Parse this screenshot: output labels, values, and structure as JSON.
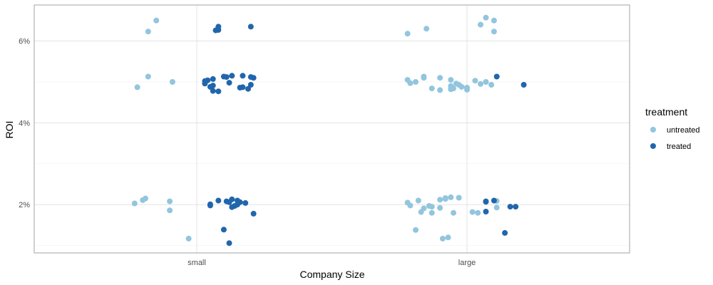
{
  "chart_data": {
    "type": "scatter",
    "subtype": "jitter",
    "x_axis_title": "Company Size",
    "y_axis_title": "ROI",
    "categories": [
      "small",
      "large"
    ],
    "y_ticks": [
      {
        "value": 2,
        "label": "2%"
      },
      {
        "value": 4,
        "label": "4%"
      },
      {
        "value": 6,
        "label": "6%"
      }
    ],
    "ylim": [
      0.82,
      6.88
    ],
    "grid": true,
    "legend": {
      "title": "treatment",
      "position": "right",
      "entries": [
        {
          "label": "untreated",
          "color": "#92C5DE"
        },
        {
          "label": "treated",
          "color": "#2166AC"
        }
      ]
    },
    "series": [
      {
        "name": "untreated",
        "color": "#92C5DE",
        "points": [
          {
            "x": "small",
            "offset": -0.18,
            "y": 6.23
          },
          {
            "x": "small",
            "offset": -0.15,
            "y": 6.5
          },
          {
            "x": "small",
            "offset": -0.18,
            "y": 5.13
          },
          {
            "x": "small",
            "offset": -0.09,
            "y": 5.0
          },
          {
            "x": "small",
            "offset": -0.22,
            "y": 4.87
          },
          {
            "x": "small",
            "offset": -0.23,
            "y": 2.03
          },
          {
            "x": "small",
            "offset": -0.2,
            "y": 2.11
          },
          {
            "x": "small",
            "offset": -0.19,
            "y": 2.15
          },
          {
            "x": "small",
            "offset": -0.1,
            "y": 2.08
          },
          {
            "x": "small",
            "offset": -0.1,
            "y": 1.86
          },
          {
            "x": "small",
            "offset": -0.03,
            "y": 1.17
          },
          {
            "x": "large",
            "offset": 0.07,
            "y": 6.57
          },
          {
            "x": "large",
            "offset": 0.1,
            "y": 6.5
          },
          {
            "x": "large",
            "offset": 0.05,
            "y": 6.4
          },
          {
            "x": "large",
            "offset": -0.15,
            "y": 6.3
          },
          {
            "x": "large",
            "offset": 0.1,
            "y": 6.23
          },
          {
            "x": "large",
            "offset": -0.22,
            "y": 6.18
          },
          {
            "x": "large",
            "offset": -0.16,
            "y": 5.13
          },
          {
            "x": "large",
            "offset": -0.16,
            "y": 5.1
          },
          {
            "x": "large",
            "offset": -0.1,
            "y": 5.1
          },
          {
            "x": "large",
            "offset": -0.22,
            "y": 5.05
          },
          {
            "x": "large",
            "offset": -0.06,
            "y": 5.05
          },
          {
            "x": "large",
            "offset": 0.03,
            "y": 5.03
          },
          {
            "x": "large",
            "offset": -0.19,
            "y": 5.0
          },
          {
            "x": "large",
            "offset": 0.07,
            "y": 5.0
          },
          {
            "x": "large",
            "offset": -0.21,
            "y": 4.97
          },
          {
            "x": "large",
            "offset": -0.04,
            "y": 4.96
          },
          {
            "x": "large",
            "offset": -0.03,
            "y": 4.93
          },
          {
            "x": "large",
            "offset": 0.05,
            "y": 4.95
          },
          {
            "x": "large",
            "offset": 0.09,
            "y": 4.93
          },
          {
            "x": "large",
            "offset": -0.06,
            "y": 4.9
          },
          {
            "x": "large",
            "offset": -0.02,
            "y": 4.88
          },
          {
            "x": "large",
            "offset": 0.0,
            "y": 4.86
          },
          {
            "x": "large",
            "offset": -0.13,
            "y": 4.84
          },
          {
            "x": "large",
            "offset": -0.05,
            "y": 4.84
          },
          {
            "x": "large",
            "offset": -0.06,
            "y": 4.82
          },
          {
            "x": "large",
            "offset": 0.0,
            "y": 4.81
          },
          {
            "x": "large",
            "offset": -0.1,
            "y": 4.8
          },
          {
            "x": "large",
            "offset": -0.06,
            "y": 2.18
          },
          {
            "x": "large",
            "offset": -0.08,
            "y": 2.16
          },
          {
            "x": "large",
            "offset": -0.08,
            "y": 2.14
          },
          {
            "x": "large",
            "offset": -0.1,
            "y": 2.12
          },
          {
            "x": "large",
            "offset": -0.03,
            "y": 2.17
          },
          {
            "x": "large",
            "offset": -0.18,
            "y": 2.1
          },
          {
            "x": "large",
            "offset": 0.11,
            "y": 2.09
          },
          {
            "x": "large",
            "offset": -0.22,
            "y": 2.05
          },
          {
            "x": "large",
            "offset": -0.21,
            "y": 1.98
          },
          {
            "x": "large",
            "offset": -0.14,
            "y": 1.97
          },
          {
            "x": "large",
            "offset": -0.13,
            "y": 1.95
          },
          {
            "x": "large",
            "offset": -0.16,
            "y": 1.91
          },
          {
            "x": "large",
            "offset": -0.1,
            "y": 1.92
          },
          {
            "x": "large",
            "offset": 0.11,
            "y": 1.93
          },
          {
            "x": "large",
            "offset": -0.17,
            "y": 1.82
          },
          {
            "x": "large",
            "offset": -0.13,
            "y": 1.8
          },
          {
            "x": "large",
            "offset": -0.05,
            "y": 1.8
          },
          {
            "x": "large",
            "offset": 0.02,
            "y": 1.82
          },
          {
            "x": "large",
            "offset": 0.04,
            "y": 1.8
          },
          {
            "x": "large",
            "offset": -0.19,
            "y": 1.38
          },
          {
            "x": "large",
            "offset": -0.07,
            "y": 1.2
          },
          {
            "x": "large",
            "offset": -0.09,
            "y": 1.17
          }
        ]
      },
      {
        "name": "treated",
        "color": "#2166AC",
        "points": [
          {
            "x": "small",
            "offset": 0.08,
            "y": 6.35
          },
          {
            "x": "small",
            "offset": 0.08,
            "y": 6.27
          },
          {
            "x": "small",
            "offset": 0.07,
            "y": 6.26
          },
          {
            "x": "small",
            "offset": 0.2,
            "y": 6.35
          },
          {
            "x": "small",
            "offset": 0.1,
            "y": 5.13
          },
          {
            "x": "small",
            "offset": 0.11,
            "y": 5.12
          },
          {
            "x": "small",
            "offset": 0.13,
            "y": 5.15
          },
          {
            "x": "small",
            "offset": 0.17,
            "y": 5.15
          },
          {
            "x": "small",
            "offset": 0.2,
            "y": 5.12
          },
          {
            "x": "small",
            "offset": 0.21,
            "y": 5.1
          },
          {
            "x": "small",
            "offset": 0.06,
            "y": 5.07
          },
          {
            "x": "small",
            "offset": 0.04,
            "y": 5.04
          },
          {
            "x": "small",
            "offset": 0.03,
            "y": 5.02
          },
          {
            "x": "small",
            "offset": 0.03,
            "y": 4.96
          },
          {
            "x": "small",
            "offset": 0.12,
            "y": 4.98
          },
          {
            "x": "small",
            "offset": 0.06,
            "y": 4.91
          },
          {
            "x": "small",
            "offset": 0.05,
            "y": 4.88
          },
          {
            "x": "small",
            "offset": 0.16,
            "y": 4.86
          },
          {
            "x": "small",
            "offset": 0.17,
            "y": 4.87
          },
          {
            "x": "small",
            "offset": 0.2,
            "y": 4.93
          },
          {
            "x": "small",
            "offset": 0.19,
            "y": 4.83
          },
          {
            "x": "small",
            "offset": 0.06,
            "y": 4.78
          },
          {
            "x": "small",
            "offset": 0.08,
            "y": 4.77
          },
          {
            "x": "small",
            "offset": 0.13,
            "y": 2.13
          },
          {
            "x": "small",
            "offset": 0.08,
            "y": 2.1
          },
          {
            "x": "small",
            "offset": 0.15,
            "y": 2.1
          },
          {
            "x": "small",
            "offset": 0.11,
            "y": 2.08
          },
          {
            "x": "small",
            "offset": 0.12,
            "y": 2.06
          },
          {
            "x": "small",
            "offset": 0.16,
            "y": 2.06
          },
          {
            "x": "small",
            "offset": 0.18,
            "y": 2.04
          },
          {
            "x": "small",
            "offset": 0.05,
            "y": 2.01
          },
          {
            "x": "small",
            "offset": 0.05,
            "y": 1.98
          },
          {
            "x": "small",
            "offset": 0.15,
            "y": 2.0
          },
          {
            "x": "small",
            "offset": 0.14,
            "y": 1.97
          },
          {
            "x": "small",
            "offset": 0.13,
            "y": 1.94
          },
          {
            "x": "small",
            "offset": 0.21,
            "y": 1.78
          },
          {
            "x": "small",
            "offset": 0.1,
            "y": 1.39
          },
          {
            "x": "small",
            "offset": 0.12,
            "y": 1.06
          },
          {
            "x": "large",
            "offset": 0.11,
            "y": 5.13
          },
          {
            "x": "large",
            "offset": 0.21,
            "y": 4.93
          },
          {
            "x": "large",
            "offset": 0.07,
            "y": 2.07
          },
          {
            "x": "large",
            "offset": 0.07,
            "y": 1.83
          },
          {
            "x": "large",
            "offset": 0.07,
            "y": 2.08
          },
          {
            "x": "large",
            "offset": 0.1,
            "y": 2.1
          },
          {
            "x": "large",
            "offset": 0.16,
            "y": 1.95
          },
          {
            "x": "large",
            "offset": 0.18,
            "y": 1.95
          },
          {
            "x": "large",
            "offset": 0.14,
            "y": 1.31
          }
        ]
      }
    ]
  }
}
